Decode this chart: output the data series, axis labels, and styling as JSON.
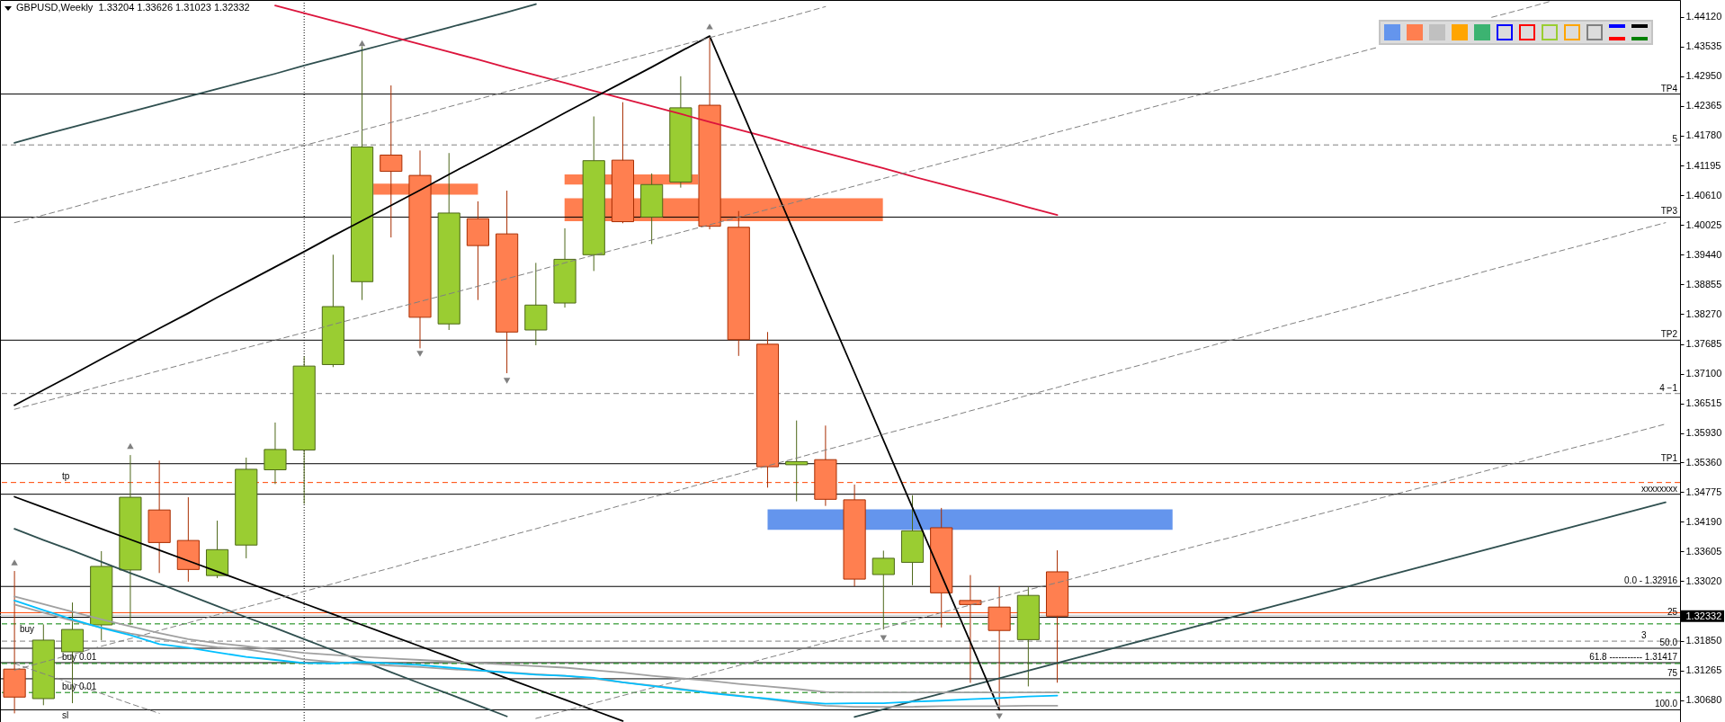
{
  "chart_data": {
    "type": "candlestick",
    "title": "GBPUSD,Weekly  1.33204 1.33626 1.31023 1.32332",
    "categories": [
      null,
      null,
      null,
      null,
      null,
      null,
      null,
      null,
      null,
      null,
      null,
      null,
      null,
      null,
      null,
      null,
      null,
      null,
      null,
      null,
      null,
      null,
      null,
      null,
      null,
      null,
      null,
      null,
      null,
      null,
      null,
      null,
      null,
      null,
      null,
      null,
      null,
      null,
      null,
      null,
      null,
      null,
      null,
      null,
      null,
      null,
      null,
      null,
      null,
      null,
      null,
      null,
      null,
      null,
      null,
      null,
      null,
      null
    ],
    "ohlc": [
      [
        1.3129,
        1.3322,
        1.3042,
        1.3074
      ],
      [
        1.3071,
        1.3217,
        1.3058,
        1.3186
      ],
      [
        1.3163,
        1.326,
        1.3062,
        1.3207
      ],
      [
        1.3216,
        1.3361,
        1.3186,
        1.3331
      ],
      [
        1.3324,
        1.355,
        1.3216,
        1.3467
      ],
      [
        1.3442,
        1.3539,
        1.3318,
        1.3378
      ],
      [
        1.3382,
        1.3467,
        1.3301,
        1.3325
      ],
      [
        1.3313,
        1.3421,
        1.3308,
        1.3364
      ],
      [
        1.3373,
        1.3545,
        1.3347,
        1.3522
      ],
      [
        1.3521,
        1.3614,
        1.3493,
        1.3561
      ],
      [
        1.356,
        1.3744,
        1.3454,
        1.3725
      ],
      [
        1.3728,
        1.3944,
        1.3723,
        1.3842
      ],
      [
        1.3891,
        1.4354,
        1.3855,
        1.4156
      ],
      [
        1.414,
        1.4277,
        1.3978,
        1.4108
      ],
      [
        1.41,
        1.4149,
        1.376,
        1.3821
      ],
      [
        1.3808,
        1.4144,
        1.3796,
        1.4026
      ],
      [
        1.4015,
        1.4049,
        1.3855,
        1.3962
      ],
      [
        1.3985,
        1.407,
        1.3711,
        1.3792
      ],
      [
        1.3796,
        1.3928,
        1.3766,
        1.3845
      ],
      [
        1.3849,
        1.3996,
        1.384,
        1.3935
      ],
      [
        1.3944,
        1.4216,
        1.3912,
        1.4129
      ],
      [
        1.413,
        1.4244,
        1.4006,
        1.4009
      ],
      [
        1.4018,
        1.4104,
        1.3965,
        1.4082
      ],
      [
        1.4087,
        1.4295,
        1.4076,
        1.4233
      ],
      [
        1.4238,
        1.4374,
        1.3994,
        1.4
      ],
      [
        1.3998,
        1.403,
        1.3745,
        1.3777
      ],
      [
        1.3768,
        1.3792,
        1.3486,
        1.3527
      ],
      [
        1.3531,
        1.3618,
        1.3459,
        1.3537
      ],
      [
        1.3541,
        1.3608,
        1.345,
        1.3463
      ],
      [
        1.3462,
        1.3492,
        1.3292,
        1.3306
      ],
      [
        1.3315,
        1.3362,
        1.3207,
        1.3347
      ],
      [
        1.3339,
        1.3471,
        1.3294,
        1.3401
      ],
      [
        1.3407,
        1.3446,
        1.3211,
        1.3279
      ],
      [
        1.3264,
        1.3314,
        1.3102,
        1.3256
      ],
      [
        1.3251,
        1.32916,
        1.3049,
        1.3205
      ],
      [
        1.3187,
        1.329,
        1.3095,
        1.3274
      ],
      [
        1.33204,
        1.33626,
        1.31023,
        1.32332
      ],
      null,
      null,
      null,
      null,
      null,
      null,
      null,
      null,
      null,
      null,
      null,
      null,
      null,
      null,
      null,
      null,
      null,
      null,
      null,
      null,
      null
    ],
    "colors": [
      "#ff7f50",
      "#9acd32",
      "#9acd32",
      "#9acd32",
      "#9acd32",
      "#ff7f50",
      "#ff7f50",
      "#9acd32",
      "#9acd32",
      "#9acd32",
      "#9acd32",
      "#9acd32",
      "#9acd32",
      "#ff7f50",
      "#ff7f50",
      "#9acd32",
      "#ff7f50",
      "#ff7f50",
      "#9acd32",
      "#9acd32",
      "#9acd32",
      "#ff7f50",
      "#9acd32",
      "#9acd32",
      "#ff7f50",
      "#ff7f50",
      "#ff7f50",
      "#9acd32",
      "#ff7f50",
      "#ff7f50",
      "#9acd32",
      "#9acd32",
      "#ff7f50",
      "#ff7f50",
      "#ff7f50",
      "#9acd32",
      "#ff7f50",
      null,
      null,
      null,
      null,
      null,
      null,
      null,
      null,
      null,
      null,
      null,
      null,
      null,
      null,
      null,
      null,
      null,
      null,
      null,
      null,
      null
    ],
    "series": [
      {
        "type": "line",
        "color": "#2f4f4f",
        "values": [
          1.4164,
          1.418,
          1.4195,
          1.421,
          1.4225,
          1.424,
          1.4255,
          1.427,
          1.4285,
          1.43,
          1.4316,
          1.4331,
          1.4346,
          1.4361,
          1.4376,
          1.4391,
          1.4406,
          1.4421,
          1.4437,
          null,
          null,
          null,
          null,
          null,
          null,
          null,
          null,
          null,
          null,
          null,
          null,
          null,
          null,
          null,
          null,
          null,
          null,
          null,
          null,
          null,
          null,
          null,
          null,
          null,
          null,
          null,
          null,
          null,
          null,
          null,
          null,
          null,
          null,
          null,
          null,
          null,
          null,
          null
        ]
      },
      {
        "type": "line",
        "color": "#2f4f4f",
        "values": [
          null,
          null,
          null,
          null,
          null,
          null,
          null,
          null,
          null,
          null,
          null,
          null,
          null,
          null,
          null,
          null,
          null,
          null,
          null,
          null,
          null,
          null,
          null,
          null,
          null,
          null,
          null,
          null,
          null,
          1.3035,
          1.305,
          1.3066,
          1.3081,
          1.3096,
          1.3111,
          1.3126,
          1.3141,
          1.3156,
          1.3171,
          1.3186,
          1.3201,
          1.3216,
          1.3231,
          1.3246,
          1.3261,
          1.3276,
          1.3291,
          1.3307,
          1.3322,
          1.3337,
          1.3352,
          1.3367,
          1.3382,
          1.3397,
          1.3412,
          1.3427,
          1.3442,
          1.3457
        ]
      },
      {
        "type": "line",
        "color": "#dc143c",
        "values": [
          null,
          null,
          null,
          null,
          null,
          null,
          null,
          null,
          null,
          1.4434,
          1.4419,
          1.4404,
          1.4389,
          1.4373,
          1.4358,
          1.4343,
          1.4328,
          1.4312,
          1.4297,
          1.4282,
          1.4266,
          1.4251,
          1.4236,
          1.4221,
          1.4205,
          1.419,
          1.4175,
          1.4159,
          1.4144,
          1.4129,
          1.4114,
          1.4098,
          1.4083,
          1.4068,
          1.4053,
          1.4037,
          1.4022,
          null,
          null,
          null,
          null,
          null,
          null,
          null,
          null,
          null,
          null,
          null,
          null,
          null,
          null,
          null,
          null,
          null,
          null,
          null,
          null,
          null
        ]
      },
      {
        "type": "line",
        "color": "#000000",
        "values": [
          1.3648,
          1.3678,
          1.3708,
          1.3739,
          1.3769,
          1.3799,
          1.3829,
          1.386,
          1.389,
          1.392,
          1.395,
          1.3981,
          1.4011,
          1.4041,
          1.4071,
          1.4102,
          1.4132,
          1.4162,
          1.4192,
          1.4223,
          1.4253,
          1.4283,
          1.4313,
          1.4344,
          1.4374,
          1.4242,
          1.4109,
          1.3977,
          1.3844,
          1.3712,
          1.3579,
          1.3447,
          1.3314,
          1.3182,
          1.3049,
          null,
          null,
          null,
          null,
          null,
          null,
          null,
          null,
          null,
          null,
          null,
          null,
          null,
          null,
          null,
          null,
          null,
          null,
          null,
          null,
          null,
          null,
          null
        ]
      },
      {
        "type": "line",
        "color": "#000000",
        "values": [
          1.3468,
          1.3447,
          1.3426,
          1.3405,
          1.3384,
          1.3363,
          1.3342,
          1.3321,
          1.33,
          1.3279,
          1.3258,
          1.3237,
          1.3216,
          1.3195,
          1.3174,
          1.3153,
          1.3132,
          1.3111,
          1.309,
          1.3069,
          1.3048,
          1.3027,
          null,
          null,
          null,
          null,
          null,
          null,
          null,
          null,
          null,
          null,
          null,
          null,
          null,
          null,
          null,
          null,
          null,
          null,
          null,
          null,
          null,
          null,
          null,
          null,
          null,
          null,
          null,
          null,
          null,
          null,
          null,
          null,
          null,
          null,
          null,
          null
        ]
      },
      {
        "type": "line",
        "color": "#2f4f4f",
        "values": [
          1.3405,
          1.3383,
          1.3362,
          1.334,
          1.3318,
          1.3297,
          1.3275,
          1.3253,
          1.3231,
          1.321,
          1.3188,
          1.3166,
          1.3145,
          1.3123,
          1.3101,
          1.308,
          1.3058,
          1.3036,
          null,
          null,
          null,
          null,
          null,
          null,
          null,
          null,
          null,
          null,
          null,
          null,
          null,
          null,
          null,
          null,
          null,
          null,
          null,
          null,
          null,
          null,
          null,
          null,
          null,
          null,
          null,
          null,
          null,
          null,
          null,
          null,
          null,
          null,
          null,
          null,
          null,
          null,
          null,
          null
        ]
      },
      {
        "type": "line",
        "color": "#808080",
        "line_style": "dashed",
        "values": [
          1.4007,
          1.4022,
          1.4037,
          1.4053,
          1.4068,
          1.4083,
          1.4098,
          1.4113,
          1.4128,
          1.4144,
          1.4159,
          1.4174,
          1.4189,
          1.4204,
          1.4219,
          1.4235,
          1.425,
          1.4265,
          1.428,
          1.4295,
          1.431,
          1.4326,
          1.4341,
          1.4356,
          1.4371,
          1.4386,
          1.4401,
          1.4416,
          1.4432,
          null,
          null,
          null,
          null,
          null,
          null,
          null,
          null,
          null,
          null,
          null,
          null,
          null,
          null,
          null,
          null,
          null,
          null,
          null,
          null,
          null,
          null,
          null,
          null,
          null,
          null,
          null,
          null,
          null
        ]
      },
      {
        "type": "line",
        "color": "#808080",
        "line_style": "dashed",
        "values": [
          1.364,
          1.3655,
          1.367,
          1.3686,
          1.3701,
          1.3716,
          1.3731,
          1.3746,
          1.3761,
          1.3776,
          1.3791,
          1.3807,
          1.3822,
          1.3837,
          1.3852,
          1.3867,
          1.3882,
          1.3897,
          1.3912,
          1.3928,
          1.3943,
          1.3958,
          1.3973,
          1.3988,
          1.4003,
          1.4018,
          1.4033,
          1.4048,
          1.4064,
          1.4079,
          1.4094,
          1.4109,
          1.4124,
          1.4139,
          1.4154,
          1.4169,
          1.4185,
          1.42,
          1.4215,
          1.423,
          1.4245,
          1.426,
          1.4275,
          1.429,
          1.4305,
          1.4321,
          1.4336,
          1.4351,
          null,
          null,
          null,
          null,
          null,
          null,
          null,
          null,
          null,
          null
        ]
      },
      {
        "type": "line",
        "color": "#808080",
        "line_style": "dashed",
        "values": [
          null,
          null,
          null,
          null,
          null,
          null,
          null,
          null,
          null,
          null,
          null,
          null,
          null,
          null,
          null,
          null,
          null,
          null,
          null,
          null,
          null,
          null,
          null,
          null,
          null,
          null,
          null,
          null,
          null,
          null,
          null,
          null,
          null,
          null,
          null,
          null,
          null,
          null,
          null,
          null,
          null,
          null,
          null,
          null,
          null,
          null,
          null,
          null,
          null,
          null,
          null,
          1.4411,
          1.4426,
          1.4442,
          null,
          null,
          null,
          null
        ]
      },
      {
        "type": "line",
        "color": "#808080",
        "line_style": "dashed",
        "values": [
          1.3127,
          1.3143,
          1.3158,
          1.3174,
          1.3189,
          1.3205,
          1.322,
          1.3236,
          1.3251,
          1.3266,
          1.3282,
          1.3297,
          1.3313,
          1.3328,
          1.3344,
          1.3359,
          1.3374,
          1.339,
          1.3405,
          1.3421,
          1.3436,
          1.3452,
          1.3467,
          1.3482,
          1.3498,
          1.3513,
          1.3529,
          1.3544,
          1.356,
          1.3575,
          1.3591,
          1.3606,
          1.3621,
          1.3637,
          1.3652,
          1.3668,
          1.3683,
          1.3699,
          1.3714,
          1.3729,
          1.3745,
          1.376,
          1.3776,
          1.3791,
          1.3807,
          1.3822,
          1.3837,
          1.3853,
          1.3868,
          1.3884,
          1.3899,
          1.3915,
          1.393,
          1.3946,
          1.3961,
          1.3976,
          1.3992,
          1.4007
        ]
      },
      {
        "type": "line",
        "color": "#808080",
        "line_style": "dashed",
        "values": [
          null,
          null,
          null,
          null,
          null,
          null,
          null,
          null,
          null,
          null,
          null,
          null,
          null,
          null,
          null,
          null,
          null,
          null,
          1.3032,
          1.3047,
          1.3062,
          1.3077,
          1.3092,
          1.3107,
          1.3121,
          1.3136,
          1.3151,
          1.3166,
          1.3181,
          1.3196,
          1.321,
          1.3225,
          1.324,
          1.3255,
          1.327,
          1.3285,
          1.3299,
          1.3314,
          1.3329,
          1.3344,
          1.3359,
          1.3374,
          1.3388,
          1.3403,
          1.3418,
          1.3433,
          1.3448,
          1.3463,
          1.3478,
          1.3492,
          1.3507,
          1.3522,
          1.3537,
          1.3552,
          1.3567,
          1.3581,
          1.3596,
          1.3611
        ]
      },
      {
        "type": "line",
        "color": "#808080",
        "line_style": "dashed",
        "values": [
          1.314,
          1.312,
          1.3101,
          1.3081,
          1.3061,
          1.3042,
          null,
          null,
          null,
          null,
          null,
          null,
          null,
          null,
          null,
          null,
          null,
          null,
          null,
          null,
          null,
          null,
          null,
          null,
          null,
          null,
          null,
          null,
          null,
          null,
          null,
          null,
          null,
          null,
          null,
          null,
          null,
          null,
          null,
          null,
          null,
          null,
          null,
          null,
          null,
          null,
          null,
          null,
          null,
          null,
          null,
          null,
          null,
          null,
          null,
          null,
          null,
          null
        ]
      },
      {
        "type": "line",
        "color": "#a0a0a0",
        "values": [
          1.3272,
          1.3257,
          1.3242,
          1.3227,
          1.3213,
          1.32,
          1.3188,
          1.318,
          1.3174,
          1.3167,
          1.3161,
          1.3157,
          1.3153,
          1.315,
          1.3147,
          1.3144,
          1.3141,
          1.3138,
          1.3135,
          1.3132,
          1.3127,
          1.3122,
          1.3116,
          1.3111,
          1.3106,
          1.31,
          1.3095,
          1.309,
          1.3084,
          1.3083,
          1.3083,
          1.3083,
          1.3083,
          1.3083,
          1.3083,
          1.3083,
          1.3083,
          null,
          null,
          null,
          null,
          null,
          null,
          null,
          null,
          null,
          null,
          null,
          null,
          null,
          null,
          null,
          null,
          null,
          null,
          null,
          null,
          null
        ]
      },
      {
        "type": "line",
        "color": "#a0a0a0",
        "values": [
          1.3256,
          1.324,
          1.3224,
          1.3211,
          1.3199,
          1.3189,
          1.3179,
          1.3172,
          1.3168,
          1.3159,
          1.3148,
          1.3143,
          1.3139,
          1.3136,
          1.3133,
          1.3129,
          1.3126,
          1.3123,
          1.3119,
          1.3116,
          1.311,
          1.3103,
          1.3097,
          1.309,
          1.3083,
          1.3077,
          1.307,
          1.3063,
          1.3057,
          1.3055,
          1.3055,
          1.3055,
          1.3056,
          1.3056,
          1.3056,
          1.3057,
          1.3057,
          null,
          null,
          null,
          null,
          null,
          null,
          null,
          null,
          null,
          null,
          null,
          null,
          null,
          null,
          null,
          null,
          null,
          null,
          null,
          null,
          null
        ]
      },
      {
        "type": "line",
        "color": "#00bfff",
        "values": [
          1.3264,
          1.3245,
          1.3227,
          1.321,
          1.3196,
          1.3178,
          1.3171,
          1.3162,
          1.3153,
          1.3147,
          1.3141,
          1.314,
          1.3143,
          1.314,
          1.3137,
          1.3132,
          1.3127,
          1.3122,
          1.3118,
          1.3116,
          1.3112,
          1.3103,
          1.3096,
          1.3089,
          1.3082,
          1.3076,
          1.3071,
          1.3065,
          1.3061,
          1.3062,
          1.3062,
          1.3065,
          1.3067,
          1.307,
          1.3072,
          1.3075,
          1.3077,
          null,
          null,
          null,
          null,
          null,
          null,
          null,
          null,
          null,
          null,
          null,
          null,
          null,
          null,
          null,
          null,
          null,
          null,
          null,
          null,
          null
        ]
      },
      {
        "type": "scatter",
        "color": "#808080",
        "marker": "triangle",
        "values": [
          1.3339,
          null,
          null,
          null,
          1.3568,
          null,
          null,
          null,
          null,
          null,
          null,
          null,
          1.436,
          null,
          1.3749,
          null,
          null,
          1.3696,
          null,
          null,
          null,
          null,
          null,
          null,
          1.4393,
          null,
          null,
          null,
          null,
          null,
          1.319,
          null,
          null,
          null,
          1.3036,
          null,
          null,
          null,
          null,
          null,
          null,
          null,
          null,
          null,
          null,
          null,
          null,
          null,
          null,
          null,
          null,
          null,
          null,
          null,
          null,
          null,
          null,
          null
        ]
      }
    ],
    "ylim": [
      1.3025,
      1.4445
    ],
    "yticks": [
      {
        "value": 1.4412,
        "label": "1.44120"
      },
      1.43535,
      {
        "value": 1.4295,
        "label": "1.42950"
      },
      1.42365,
      {
        "value": 1.4178,
        "label": "1.41780"
      },
      1.41195,
      {
        "value": 1.4061,
        "label": "1.40610"
      },
      1.40025,
      {
        "value": 1.3944,
        "label": "1.39440"
      },
      1.38855,
      {
        "value": 1.3827,
        "label": "1.38270"
      },
      1.37685,
      {
        "value": 1.371,
        "label": "1.37100"
      },
      1.36515,
      {
        "value": 1.3593,
        "label": "1.35930"
      },
      {
        "value": 1.3536,
        "label": "1.35360"
      },
      1.34775,
      {
        "value": 1.3419,
        "label": "1.34190"
      },
      1.33605,
      {
        "value": 1.3302,
        "label": "1.33020"
      },
      1.32332,
      {
        "value": 1.3185,
        "label": "1.31850"
      },
      1.31265,
      {
        "value": 1.3068,
        "label": "1.30680"
      }
    ],
    "ref_lines": [
      {
        "axis": "y",
        "value": 1.426,
        "label": "TP4",
        "color": "#000000"
      },
      {
        "axis": "y",
        "value": 1.416,
        "color": "#808080",
        "line_style": "dashed"
      },
      {
        "axis": "y",
        "value": 1.4018,
        "label": "TP3",
        "color": "#000000"
      },
      {
        "axis": "y",
        "value": 1.3776,
        "label": "TP2",
        "color": "#000000"
      },
      {
        "axis": "y",
        "value": 1.3671,
        "color": "#808080",
        "line_style": "dashed"
      },
      {
        "axis": "y",
        "value": 1.3533,
        "label": "TP1",
        "color": "#000000"
      },
      {
        "axis": "y",
        "value": 1.3496,
        "label": "tp",
        "color": "#ff4500",
        "line_style": "dashed"
      },
      {
        "axis": "y",
        "value": 1.3473,
        "label": "xxxxxxxx",
        "color": "#000000"
      },
      {
        "axis": "y",
        "value": 1.32916,
        "color": "#000000"
      },
      {
        "axis": "y",
        "value": 1.324,
        "color": "#ff4500"
      },
      {
        "axis": "y",
        "value": 1.3235,
        "color": "#c0c0c0"
      },
      {
        "axis": "y",
        "value": 1.3231,
        "color": "#000000"
      },
      {
        "axis": "y",
        "value": 1.3218,
        "label": "buy",
        "color": "#008000",
        "line_style": "dashed"
      },
      {
        "axis": "y",
        "value": 1.3184,
        "color": "#808080",
        "line_style": "dashed"
      },
      {
        "axis": "y",
        "value": 1.317,
        "color": "#000000"
      },
      {
        "axis": "y",
        "value": 1.31417,
        "color": "#000000"
      },
      {
        "axis": "y",
        "value": 1.314,
        "label": "buy 0.01",
        "color": "#008000",
        "line_style": "dashed"
      },
      {
        "axis": "y",
        "value": 1.311,
        "color": "#000000"
      },
      {
        "axis": "y",
        "value": 1.3083,
        "label": "buy 0.01",
        "color": "#008000",
        "line_style": "dashed"
      },
      {
        "axis": "y",
        "value": 1.3049,
        "color": "#000000"
      }
    ],
    "annotations": [
      {
        "text": "0.0 - 1.32916",
        "y": 1.32916
      },
      {
        "text": "25",
        "y": 1.3231
      },
      {
        "text": "50.0",
        "y": 1.317
      },
      {
        "text": "61.8 ----------- 1.31417",
        "y": 1.31417
      },
      {
        "text": "75",
        "y": 1.311
      },
      {
        "text": "100.0",
        "y": 1.3049
      },
      {
        "text": "5",
        "y": 1.416
      },
      {
        "text": "4 −1",
        "y": 1.3671
      },
      {
        "text": "3",
        "y": 1.3184
      },
      "sl"
    ]
  }
}
